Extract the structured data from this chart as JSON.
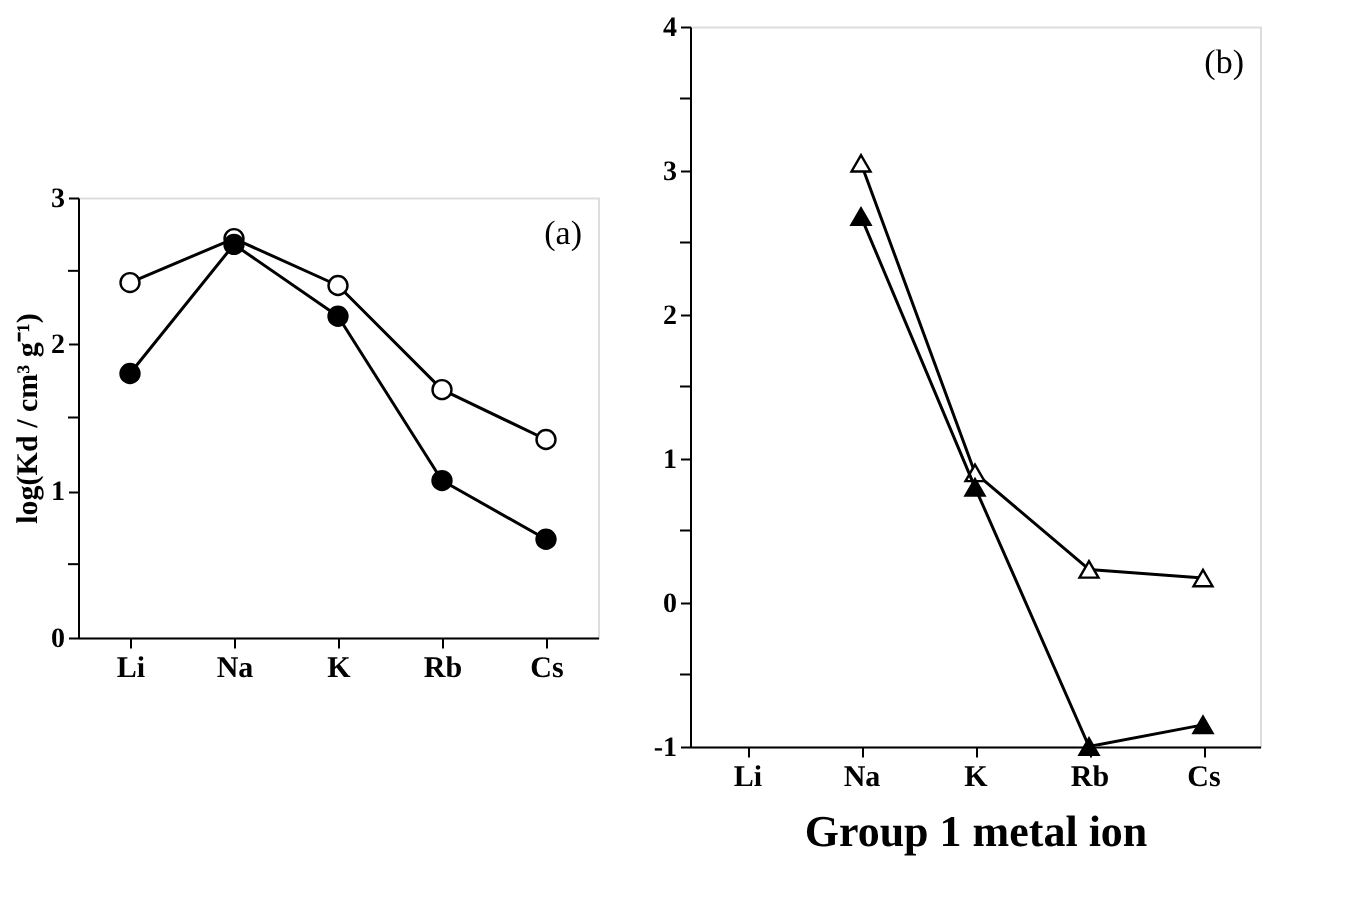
{
  "chart_data": [
    {
      "type": "line",
      "ylabel": "log(Kd / cm³ g⁻¹)",
      "annotations": [
        "(a)"
      ],
      "categories": [
        "Li",
        "Na",
        "K",
        "Rb",
        "Cs"
      ],
      "series": [
        {
          "color": "#ffffff",
          "marker": "circle",
          "values": [
            2.42,
            2.72,
            2.4,
            1.69,
            1.35
          ]
        },
        {
          "color": "#000000",
          "marker": "circle",
          "values": [
            1.8,
            2.68,
            2.19,
            1.07,
            0.67
          ]
        }
      ],
      "ylim": [
        0,
        3
      ],
      "yticks": [
        0,
        {
          "value": 0.5,
          "label": null
        },
        1,
        {
          "value": 1.5,
          "label": null
        },
        2,
        {
          "value": 2.5,
          "label": null
        },
        3
      ],
      "grid": false
    },
    {
      "type": "line",
      "xlabel": "Group 1 metal ion",
      "annotations": [
        "(b)"
      ],
      "categories": [
        "Li",
        "Na",
        "K",
        "Rb",
        "Cs"
      ],
      "series": [
        {
          "color": "#ffffff",
          "marker": "triangle",
          "values": [
            null,
            3.05,
            0.9,
            0.23,
            0.17
          ]
        },
        {
          "color": "#000000",
          "marker": "triangle",
          "values": [
            null,
            2.68,
            0.8,
            -1.0,
            -0.85
          ]
        }
      ],
      "ylim": [
        -1,
        4
      ],
      "yticks": [
        -1,
        {
          "value": -0.5,
          "label": null
        },
        0,
        {
          "value": 0.5,
          "label": null
        },
        1,
        {
          "value": 1.5,
          "label": null
        },
        2,
        {
          "value": 2.5,
          "label": null
        },
        3,
        {
          "value": 3.5,
          "label": null
        },
        4
      ],
      "grid": false
    }
  ]
}
